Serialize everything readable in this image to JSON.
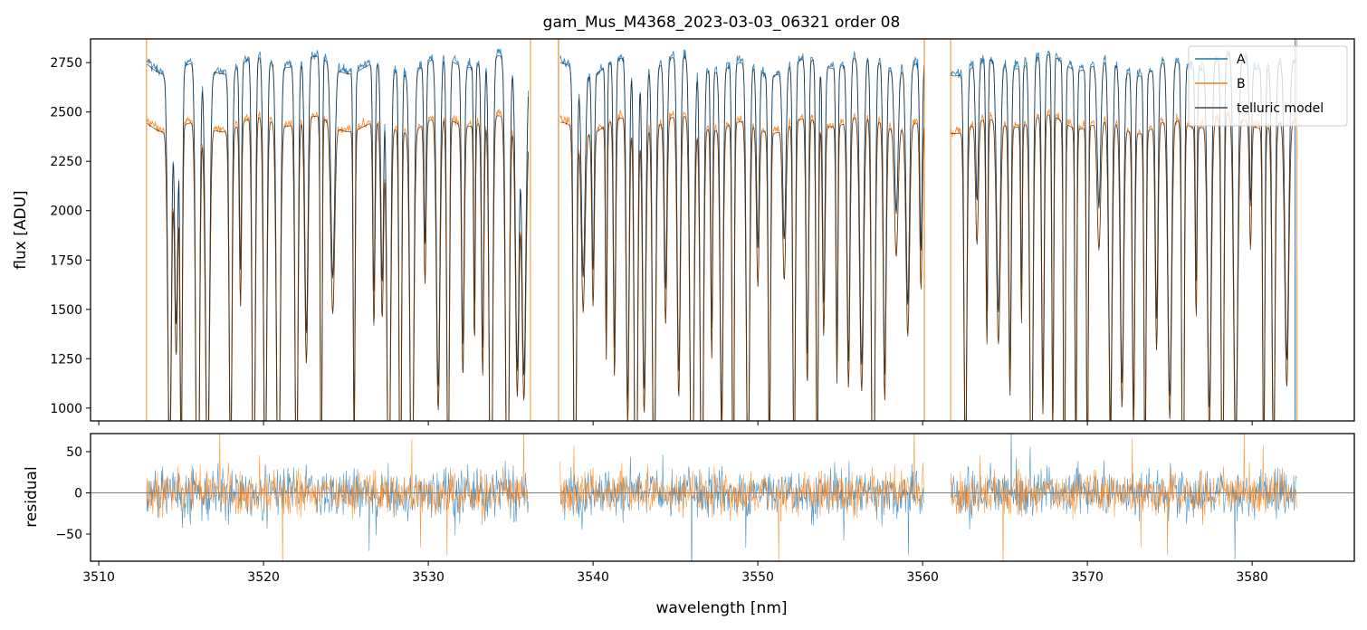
{
  "figure": {
    "title": "gam_Mus_M4368_2023-03-03_06321  order 08"
  },
  "colors": {
    "A": "#1f77b4",
    "B": "#ff7f0e",
    "model": "#000000"
  },
  "chart_data": [
    {
      "type": "line",
      "title": "gam_Mus_M4368_2023-03-03_06321  order 08",
      "xlabel": "",
      "ylabel": "flux [ADU]",
      "xlim": [
        3509.5,
        3586.2
      ],
      "ylim": [
        935,
        2870
      ],
      "yticks": [
        1000,
        1250,
        1500,
        1750,
        2000,
        2250,
        2500,
        2750
      ],
      "legend_position": "top-right",
      "legend": [
        "A",
        "B",
        "telluric model"
      ],
      "data_segments_nm": [
        [
          3512.9,
          3536.1
        ],
        [
          3538.0,
          3560.1
        ],
        [
          3561.7,
          3582.7
        ]
      ],
      "series": [
        {
          "name": "A",
          "continuum_approx": 2750,
          "values_note": "dense spectrum with deep telluric absorption lines"
        },
        {
          "name": "B",
          "continuum_approx": 2450
        },
        {
          "name": "telluric model"
        }
      ],
      "absorption_lines_nm": [
        3514.3,
        3514.7,
        3515.0,
        3516.0,
        3516.6,
        3518.0,
        3518.6,
        3519.4,
        3520.1,
        3520.9,
        3522.0,
        3522.6,
        3523.5,
        3524.2,
        3525.5,
        3526.7,
        3527.2,
        3527.6,
        3528.3,
        3529.0,
        3529.8,
        3530.6,
        3531.2,
        3532.1,
        3532.8,
        3533.3,
        3533.8,
        3534.8,
        3535.4,
        3535.8,
        3538.9,
        3539.4,
        3540.0,
        3540.8,
        3541.3,
        3542.1,
        3542.6,
        3543.1,
        3543.7,
        3544.4,
        3545.2,
        3546.0,
        3546.6,
        3547.2,
        3547.8,
        3548.5,
        3549.4,
        3550.0,
        3550.7,
        3551.6,
        3552.2,
        3553.0,
        3553.6,
        3554.0,
        3554.8,
        3555.5,
        3556.3,
        3557.0,
        3557.7,
        3558.4,
        3559.1,
        3559.9,
        3562.6,
        3563.3,
        3563.9,
        3564.6,
        3565.3,
        3566.0,
        3566.6,
        3567.3,
        3567.9,
        3568.6,
        3569.3,
        3570.0,
        3570.7,
        3571.4,
        3572.1,
        3572.8,
        3573.5,
        3574.2,
        3575.0,
        3575.8,
        3576.6,
        3577.4,
        3578.2,
        3579.0,
        3579.9,
        3580.7,
        3581.3,
        3582.1
      ],
      "spike_markers_nm": {
        "A": [
          3537.9,
          3560.1,
          3582.6
        ],
        "B": [
          3512.9,
          3536.2,
          3537.9,
          3560.1,
          3561.7,
          3582.7
        ]
      }
    },
    {
      "type": "line",
      "xlabel": "wavelength [nm]",
      "ylabel": "residual",
      "xlim": [
        3509.5,
        3586.2
      ],
      "ylim": [
        -83,
        72
      ],
      "xticks": [
        3510,
        3520,
        3530,
        3540,
        3550,
        3560,
        3570,
        3580
      ],
      "yticks": [
        -50,
        0,
        50
      ],
      "reference_line_y": 0,
      "series": [
        {
          "name": "A",
          "noise_amplitude": 25
        },
        {
          "name": "B",
          "noise_amplitude": 22
        }
      ]
    }
  ]
}
